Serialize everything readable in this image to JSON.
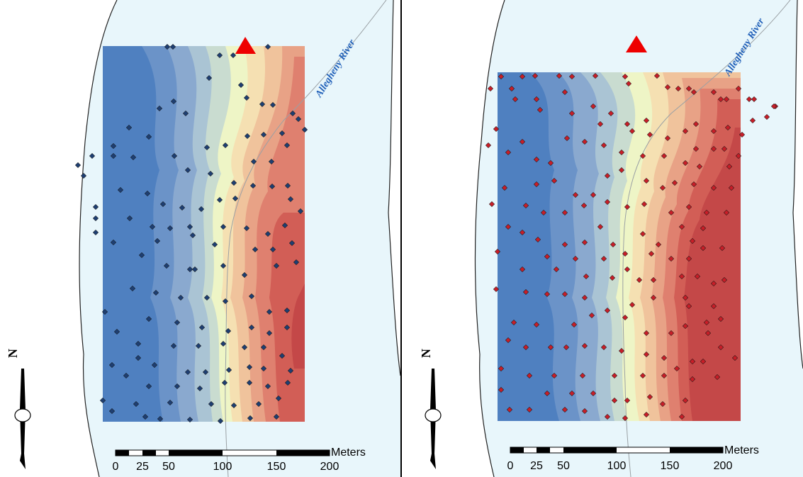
{
  "colors": {
    "water": "#e8f6fb",
    "land": "#ffffff",
    "shoreline": "#222222",
    "thalweg": "#9aa0a4",
    "river_label": "#1f5fb8",
    "marker": "#ee0000",
    "left_points": "#1e3f73",
    "right_points": "#c81e28",
    "ramp": [
      "#4f80c0",
      "#6b93c8",
      "#8aa9cf",
      "#aac4d4",
      "#c9dcd0",
      "#eef5c6",
      "#f5e0b2",
      "#f0c39c",
      "#e8a286",
      "#df806f",
      "#d25e56",
      "#c44848"
    ]
  },
  "maps": [
    {
      "id": "left",
      "river_label": "Allegheny River",
      "scale_bar": {
        "unit": "Meters",
        "ticks": [
          "0",
          "25",
          "50",
          "100",
          "150",
          "200"
        ],
        "tick_values": [
          0,
          25,
          50,
          100,
          150,
          200
        ]
      },
      "north_arrow": {
        "label": "N"
      }
    },
    {
      "id": "right",
      "river_label": "Allegheny River",
      "scale_bar": {
        "unit": "Meters",
        "ticks": [
          "0",
          "25",
          "50",
          "100",
          "150",
          "200"
        ],
        "tick_values": [
          0,
          25,
          50,
          100,
          150,
          200
        ]
      },
      "north_arrow": {
        "label": "N"
      }
    }
  ]
}
